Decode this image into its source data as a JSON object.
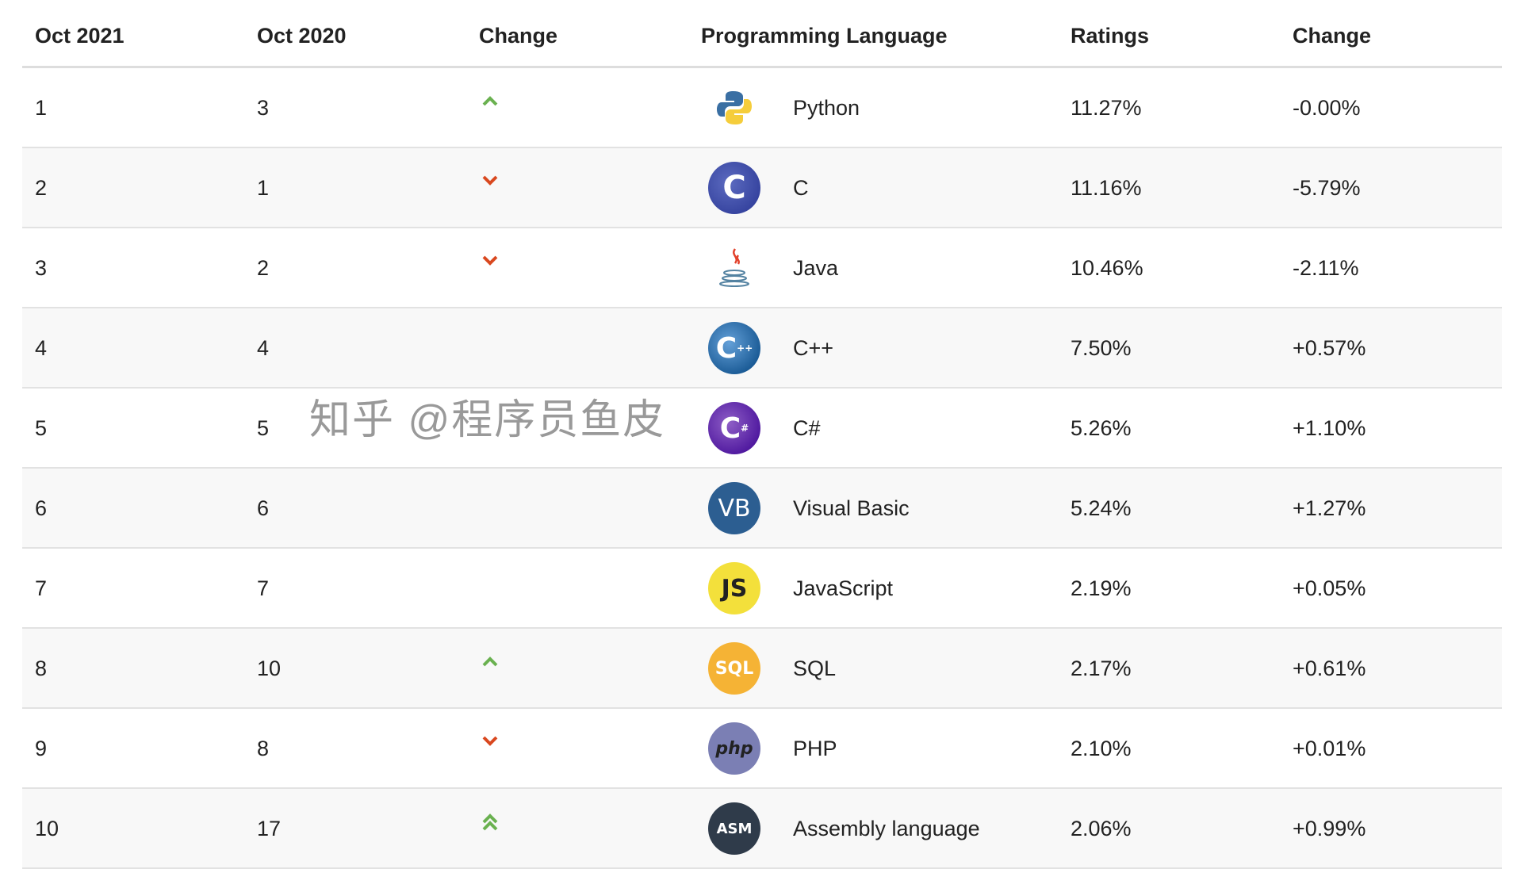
{
  "headers": [
    "Oct 2021",
    "Oct 2020",
    "Change",
    "Programming Language",
    "Ratings",
    "Change"
  ],
  "colors": {
    "up": "#6ab150",
    "down": "#d9481f",
    "header_rule": "#dddddd",
    "alt_row": "#f8f8f8"
  },
  "rows": [
    {
      "rank2021": "1",
      "rank2020": "3",
      "trend": "up",
      "icon": "python-logo-icon",
      "language": "Python",
      "rating": "11.27%",
      "change": "-0.00%"
    },
    {
      "rank2021": "2",
      "rank2020": "1",
      "trend": "down",
      "icon": "c-logo-icon",
      "language": "C",
      "rating": "11.16%",
      "change": "-5.79%"
    },
    {
      "rank2021": "3",
      "rank2020": "2",
      "trend": "down",
      "icon": "java-logo-icon",
      "language": "Java",
      "rating": "10.46%",
      "change": "-2.11%"
    },
    {
      "rank2021": "4",
      "rank2020": "4",
      "trend": "none",
      "icon": "cpp-logo-icon",
      "language": "C++",
      "rating": "7.50%",
      "change": "+0.57%"
    },
    {
      "rank2021": "5",
      "rank2020": "5",
      "trend": "none",
      "icon": "csharp-logo-icon",
      "language": "C#",
      "rating": "5.26%",
      "change": "+1.10%"
    },
    {
      "rank2021": "6",
      "rank2020": "6",
      "trend": "none",
      "icon": "vb-logo-icon",
      "icon_text": "VB",
      "language": "Visual Basic",
      "rating": "5.24%",
      "change": "+1.27%"
    },
    {
      "rank2021": "7",
      "rank2020": "7",
      "trend": "none",
      "icon": "js-logo-icon",
      "icon_text": "JS",
      "language": "JavaScript",
      "rating": "2.19%",
      "change": "+0.05%"
    },
    {
      "rank2021": "8",
      "rank2020": "10",
      "trend": "up",
      "icon": "sql-logo-icon",
      "icon_text": "SQL",
      "language": "SQL",
      "rating": "2.17%",
      "change": "+0.61%"
    },
    {
      "rank2021": "9",
      "rank2020": "8",
      "trend": "down",
      "icon": "php-logo-icon",
      "icon_text": "php",
      "language": "PHP",
      "rating": "2.10%",
      "change": "+0.01%"
    },
    {
      "rank2021": "10",
      "rank2020": "17",
      "trend": "up2",
      "icon": "asm-logo-icon",
      "icon_text": "ASM",
      "language": "Assembly language",
      "rating": "2.06%",
      "change": "+0.99%"
    }
  ],
  "watermark": "知乎 @程序员鱼皮"
}
